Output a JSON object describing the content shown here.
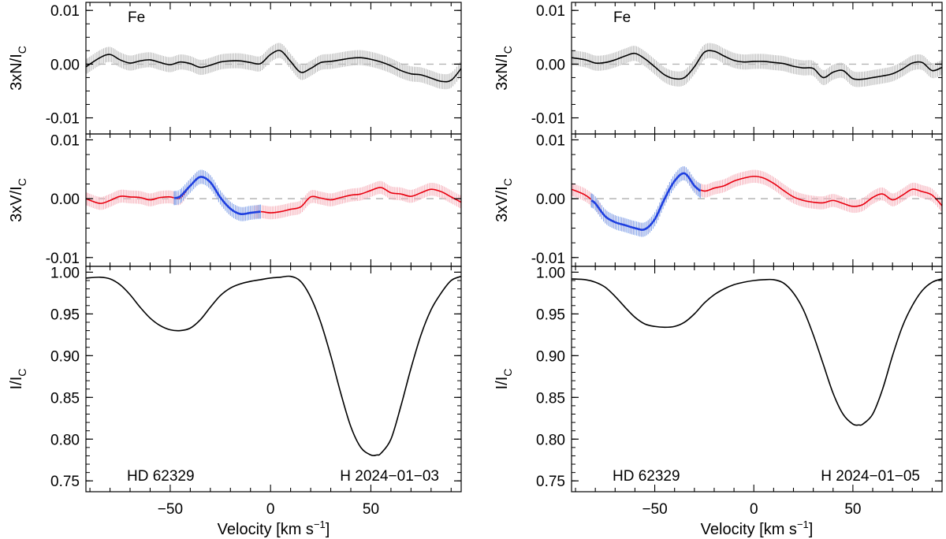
{
  "figure": {
    "xlabel_main": "Velocity [km s",
    "xlabel_sup": "−1",
    "xlabel_close": "]"
  },
  "chart_data": [
    {
      "type": "line",
      "panel": "left",
      "xlim": [
        -92,
        95
      ],
      "xticks": [
        -50,
        0,
        50
      ],
      "xtick_labels": [
        "−50",
        "0",
        "50"
      ],
      "element_label": "Fe",
      "star_label": "HD 62329",
      "date_label": "H 2024−01−03",
      "subplots": [
        {
          "name": "null",
          "ylabel_main": "3xN/I",
          "ylabel_sub": "C",
          "ylim": [
            -0.013,
            0.0115
          ],
          "yticks": [
            0.01,
            0.0,
            -0.01
          ],
          "ytick_labels": [
            "0.01",
            "0.00",
            "-0.01"
          ],
          "zero_line": true,
          "series": [
            {
              "name": "N",
              "color": "#000000",
              "error_color": "#bdbdbd",
              "error": 0.0014,
              "x": [
                -92,
                -85,
                -80,
                -75,
                -70,
                -65,
                -60,
                -55,
                -50,
                -45,
                -40,
                -35,
                -30,
                -25,
                -20,
                -15,
                -10,
                -5,
                0,
                5,
                10,
                15,
                20,
                25,
                30,
                35,
                40,
                45,
                50,
                55,
                60,
                65,
                70,
                75,
                80,
                85,
                90,
                95
              ],
              "y": [
                -0.0005,
                0.0012,
                0.0018,
                0.0008,
                0.0002,
                0.0006,
                0.0008,
                0.0003,
                -0.0001,
                0.0004,
                0.0001,
                -0.0006,
                -0.0002,
                0.0004,
                0.0006,
                0.0006,
                0.0003,
                0.0001,
                0.0018,
                0.0025,
                0.0005,
                -0.0015,
                -0.0008,
                0.0003,
                0.0005,
                0.0008,
                0.0011,
                0.0012,
                0.0009,
                0.0004,
                -0.0003,
                -0.0012,
                -0.0018,
                -0.002,
                -0.0026,
                -0.0032,
                -0.003,
                -0.0008
              ]
            }
          ]
        },
        {
          "name": "stokes-v",
          "ylabel_main": "3xV/I",
          "ylabel_sub": "C",
          "ylim": [
            -0.0115,
            0.011
          ],
          "yticks": [
            0.01,
            0.0,
            -0.01
          ],
          "ytick_labels": [
            "0.01",
            "0.00",
            "-0.01"
          ],
          "zero_line": true,
          "series": [
            {
              "name": "V",
              "color": "#e8000f",
              "error_color": "#f6b3bd",
              "error": 0.0011,
              "x": [
                -92,
                -85,
                -80,
                -75,
                -70,
                -65,
                -60,
                -55,
                -50,
                -45,
                -40,
                -35,
                -30,
                -25,
                -20,
                -15,
                -10,
                -5,
                0,
                5,
                10,
                15,
                20,
                25,
                30,
                35,
                40,
                45,
                50,
                55,
                60,
                65,
                70,
                75,
                80,
                85,
                90,
                95
              ],
              "y": [
                0.0,
                -0.0008,
                -0.0003,
                0.0004,
                0.0003,
                0.0002,
                -0.0002,
                0.0002,
                0.0003,
                0.0001,
                0.0022,
                0.0037,
                0.0028,
                0.0002,
                -0.0017,
                -0.0026,
                -0.0024,
                -0.0022,
                -0.0024,
                -0.0022,
                -0.0018,
                -0.0014,
                0.0003,
                0.0001,
                -0.0002,
                0.0002,
                0.0006,
                0.0008,
                0.0014,
                0.0019,
                0.001,
                0.0008,
                0.0004,
                0.001,
                0.0016,
                0.0012,
                0.0003,
                -0.0006
              ]
            },
            {
              "name": "V detected",
              "color": "#1e3fe0",
              "error_color": "#86aaee",
              "error": 0.0012,
              "x": [
                -48,
                -45,
                -40,
                -35,
                -30,
                -25,
                -20,
                -15,
                -10,
                -5
              ],
              "y": [
                0.0001,
                0.0004,
                0.0022,
                0.0037,
                0.0028,
                0.0002,
                -0.0017,
                -0.0026,
                -0.0024,
                -0.0022
              ]
            }
          ]
        },
        {
          "name": "intensity",
          "ylabel_main": "I/I",
          "ylabel_sub": "C",
          "ylim": [
            0.737,
            1.007
          ],
          "yticks": [
            1.0,
            0.95,
            0.9,
            0.85,
            0.8,
            0.75
          ],
          "ytick_labels": [
            "1.00",
            "0.95",
            "0.90",
            "0.85",
            "0.80",
            "0.75"
          ],
          "zero_line": false,
          "series": [
            {
              "name": "I",
              "color": "#000000",
              "x": [
                -92,
                -85,
                -80,
                -75,
                -70,
                -65,
                -60,
                -55,
                -50,
                -45,
                -40,
                -35,
                -30,
                -25,
                -20,
                -15,
                -10,
                -5,
                0,
                5,
                10,
                15,
                20,
                25,
                30,
                35,
                40,
                45,
                50,
                53,
                55,
                60,
                65,
                70,
                75,
                80,
                85,
                90,
                95
              ],
              "y": [
                0.993,
                0.994,
                0.992,
                0.985,
                0.973,
                0.958,
                0.945,
                0.936,
                0.931,
                0.93,
                0.933,
                0.943,
                0.958,
                0.972,
                0.981,
                0.986,
                0.989,
                0.991,
                0.993,
                0.994,
                0.995,
                0.989,
                0.97,
                0.94,
                0.9,
                0.855,
                0.815,
                0.79,
                0.781,
                0.781,
                0.783,
                0.8,
                0.84,
                0.885,
                0.925,
                0.955,
                0.975,
                0.99,
                0.995
              ]
            }
          ]
        }
      ]
    },
    {
      "type": "line",
      "panel": "right",
      "xlim": [
        -92,
        95
      ],
      "xticks": [
        -50,
        0,
        50
      ],
      "xtick_labels": [
        "−50",
        "0",
        "50"
      ],
      "element_label": "Fe",
      "star_label": "HD 62329",
      "date_label": "H 2024−01−05",
      "subplots": [
        {
          "name": "null",
          "ylabel_main": "3xN/I",
          "ylabel_sub": "C",
          "ylim": [
            -0.013,
            0.0115
          ],
          "yticks": [
            0.01,
            0.0,
            -0.01
          ],
          "ytick_labels": [
            "0.01",
            "0.00",
            "-0.01"
          ],
          "zero_line": true,
          "series": [
            {
              "name": "N",
              "color": "#000000",
              "error_color": "#bdbdbd",
              "error": 0.0014,
              "x": [
                -92,
                -85,
                -80,
                -75,
                -70,
                -65,
                -60,
                -55,
                -50,
                -45,
                -40,
                -35,
                -30,
                -25,
                -20,
                -15,
                -10,
                -5,
                0,
                5,
                10,
                15,
                20,
                25,
                30,
                35,
                40,
                45,
                50,
                55,
                60,
                65,
                70,
                75,
                80,
                85,
                90,
                95
              ],
              "y": [
                0.0012,
                0.0008,
                0.0002,
                0.0003,
                0.0008,
                0.0015,
                0.002,
                0.001,
                -0.0005,
                -0.002,
                -0.0027,
                -0.0025,
                -0.0005,
                0.0022,
                0.0024,
                0.0015,
                0.0007,
                0.0004,
                0.0005,
                0.0005,
                0.0003,
                0.0001,
                -0.0004,
                -0.0007,
                -0.0008,
                -0.0025,
                -0.0015,
                -0.0012,
                -0.0027,
                -0.0028,
                -0.0025,
                -0.0022,
                -0.0018,
                -0.0009,
                0.0002,
                0.0003,
                -0.0012,
                -0.0006
              ]
            }
          ]
        },
        {
          "name": "stokes-v",
          "ylabel_main": "3xV/I",
          "ylabel_sub": "C",
          "ylim": [
            -0.0115,
            0.011
          ],
          "yticks": [
            0.01,
            0.0,
            -0.01
          ],
          "ytick_labels": [
            "0.01",
            "0.00",
            "-0.01"
          ],
          "zero_line": true,
          "series": [
            {
              "name": "V",
              "color": "#e8000f",
              "error_color": "#f6b3bd",
              "error": 0.0011,
              "x": [
                -92,
                -85,
                -80,
                -75,
                -70,
                -65,
                -60,
                -55,
                -50,
                -45,
                -40,
                -35,
                -30,
                -25,
                -20,
                -15,
                -10,
                -5,
                0,
                5,
                10,
                15,
                20,
                25,
                30,
                35,
                40,
                45,
                50,
                55,
                60,
                65,
                70,
                75,
                80,
                85,
                90,
                95
              ],
              "y": [
                0.0016,
                0.0006,
                -0.0008,
                -0.003,
                -0.004,
                -0.0045,
                -0.005,
                -0.0052,
                -0.0035,
                0.0,
                0.003,
                0.0043,
                0.0022,
                0.0013,
                0.0018,
                0.0022,
                0.003,
                0.0035,
                0.0038,
                0.0035,
                0.0026,
                0.0014,
                0.0003,
                -0.0003,
                -0.0006,
                -0.0007,
                -0.0003,
                -0.0008,
                -0.0013,
                -0.001,
                0.0002,
                0.0008,
                -0.0002,
                0.0006,
                0.0016,
                0.0012,
                0.0006,
                -0.0012
              ]
            },
            {
              "name": "V detected",
              "color": "#1e3fe0",
              "error_color": "#86aaee",
              "error": 0.0012,
              "x": [
                -82,
                -80,
                -75,
                -70,
                -65,
                -60,
                -55,
                -50,
                -45,
                -40,
                -35,
                -30,
                -27
              ],
              "y": [
                -0.0003,
                -0.0008,
                -0.003,
                -0.004,
                -0.0045,
                -0.005,
                -0.0052,
                -0.0035,
                0.0,
                0.003,
                0.0043,
                0.0022,
                0.0013
              ]
            }
          ]
        },
        {
          "name": "intensity",
          "ylabel_main": "I/I",
          "ylabel_sub": "C",
          "ylim": [
            0.737,
            1.007
          ],
          "yticks": [
            1.0,
            0.95,
            0.9,
            0.85,
            0.8,
            0.75
          ],
          "ytick_labels": [
            "1.00",
            "0.95",
            "0.90",
            "0.85",
            "0.80",
            "0.75"
          ],
          "zero_line": false,
          "series": [
            {
              "name": "I",
              "color": "#000000",
              "x": [
                -92,
                -85,
                -80,
                -75,
                -70,
                -65,
                -60,
                -55,
                -50,
                -45,
                -40,
                -35,
                -30,
                -25,
                -20,
                -15,
                -10,
                -5,
                0,
                5,
                10,
                15,
                20,
                25,
                30,
                35,
                40,
                45,
                50,
                53,
                55,
                60,
                65,
                70,
                75,
                80,
                85,
                90,
                95
              ],
              "y": [
                0.992,
                0.991,
                0.988,
                0.982,
                0.971,
                0.958,
                0.946,
                0.938,
                0.935,
                0.934,
                0.935,
                0.94,
                0.95,
                0.963,
                0.973,
                0.98,
                0.985,
                0.988,
                0.99,
                0.991,
                0.991,
                0.987,
                0.975,
                0.955,
                0.925,
                0.89,
                0.855,
                0.83,
                0.818,
                0.817,
                0.818,
                0.83,
                0.86,
                0.9,
                0.935,
                0.96,
                0.978,
                0.988,
                0.992
              ]
            }
          ]
        }
      ]
    }
  ]
}
